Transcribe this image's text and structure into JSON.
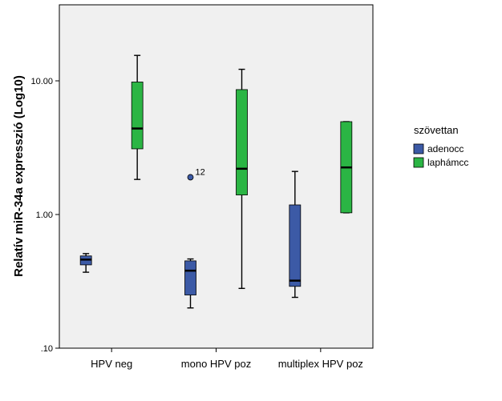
{
  "chart_data": {
    "type": "boxplot",
    "ylabel": "Relatív miR-34a expresszió (Log10)",
    "yscale": "log",
    "ylim": [
      0.1,
      40
    ],
    "yticks": [
      {
        "value": 0.1,
        "label": ".10"
      },
      {
        "value": 1,
        "label": "1.00"
      },
      {
        "value": 10,
        "label": "10.00"
      }
    ],
    "categories": [
      "HPV neg",
      "mono HPV poz",
      "multiplex HPV poz"
    ],
    "legend": {
      "title": "szövettan",
      "placement": "right"
    },
    "series": [
      {
        "name": "adenocc",
        "color": "#3c5aa6",
        "boxes": [
          {
            "whisker_low": 0.37,
            "q1": 0.42,
            "median": 0.46,
            "q3": 0.49,
            "whisker_high": 0.51
          },
          {
            "whisker_low": 0.2,
            "q1": 0.25,
            "median": 0.38,
            "q3": 0.45,
            "whisker_high": 0.465
          },
          {
            "whisker_low": 0.24,
            "q1": 0.29,
            "median": 0.32,
            "q3": 1.18,
            "whisker_high": 2.1
          }
        ],
        "outliers": [
          {
            "category": "mono HPV poz",
            "value": 1.9,
            "label": "12"
          }
        ]
      },
      {
        "name": "laphámcc",
        "color": "#2bb544",
        "boxes": [
          {
            "whisker_low": 1.83,
            "q1": 3.1,
            "median": 4.4,
            "q3": 9.8,
            "whisker_high": 15.5
          },
          {
            "whisker_low": 0.28,
            "q1": 1.4,
            "median": 2.2,
            "q3": 8.6,
            "whisker_high": 12.2
          },
          {
            "whisker_low": 1.03,
            "q1": 1.03,
            "median": 2.25,
            "q3": 4.95,
            "whisker_high": 4.95
          }
        ],
        "outliers": []
      }
    ]
  }
}
